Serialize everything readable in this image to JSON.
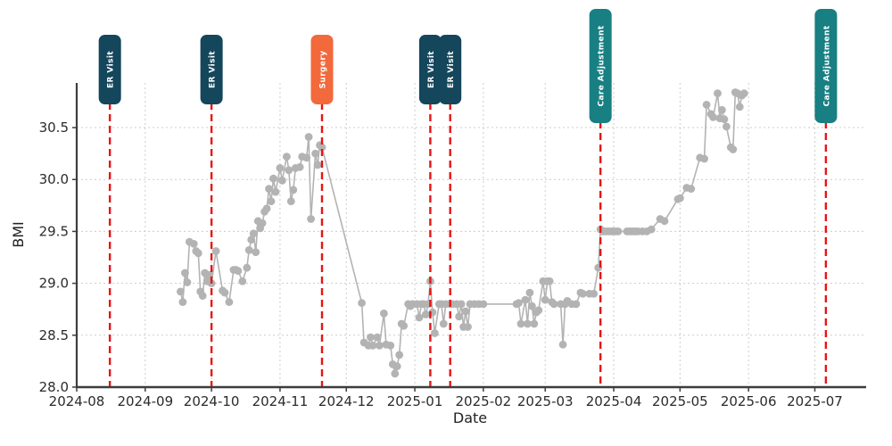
{
  "chart_data": {
    "type": "line",
    "title": "",
    "xlabel": "Date",
    "ylabel": "BMI",
    "grid": true,
    "legend_position": "none",
    "x_domain": [
      "2024-08-01",
      "2025-07-23"
    ],
    "ylim": [
      28.0,
      30.93
    ],
    "x_ticks": [
      {
        "label": "2024-08",
        "date": "2024-08-01"
      },
      {
        "label": "2024-09",
        "date": "2024-09-01"
      },
      {
        "label": "2024-10",
        "date": "2024-10-01"
      },
      {
        "label": "2024-11",
        "date": "2024-11-01"
      },
      {
        "label": "2024-12",
        "date": "2024-12-01"
      },
      {
        "label": "2025-01",
        "date": "2025-01-01"
      },
      {
        "label": "2025-02",
        "date": "2025-02-01"
      },
      {
        "label": "2025-03",
        "date": "2025-03-01"
      },
      {
        "label": "2025-04",
        "date": "2025-04-01"
      },
      {
        "label": "2025-05",
        "date": "2025-05-01"
      },
      {
        "label": "2025-06",
        "date": "2025-06-01"
      },
      {
        "label": "2025-07",
        "date": "2025-07-01"
      }
    ],
    "y_ticks": [
      28.0,
      28.5,
      29.0,
      29.5,
      30.0,
      30.5
    ],
    "events": [
      {
        "date": "2024-08-16",
        "label": "ER Visit",
        "color": "#14465c"
      },
      {
        "date": "2024-10-01",
        "label": "ER Visit",
        "color": "#14465c"
      },
      {
        "date": "2024-11-20",
        "label": "Surgery",
        "color": "#f2693c"
      },
      {
        "date": "2025-01-08",
        "label": "ER Visit",
        "color": "#14465c"
      },
      {
        "date": "2025-01-17",
        "label": "ER Visit",
        "color": "#14465c"
      },
      {
        "date": "2025-03-26",
        "label": "Care Adjustment",
        "color": "#187f83"
      },
      {
        "date": "2025-07-06",
        "label": "Care Adjustment",
        "color": "#187f83"
      }
    ],
    "event_line_color": "#e81414",
    "series": [
      {
        "name": "BMI",
        "color": "#b3b3b3",
        "marker": "circle",
        "points": [
          [
            "2024-09-17",
            28.92
          ],
          [
            "2024-09-18",
            28.82
          ],
          [
            "2024-09-19",
            29.1
          ],
          [
            "2024-09-20",
            29.01
          ],
          [
            "2024-09-21",
            29.4
          ],
          [
            "2024-09-23",
            29.38
          ],
          [
            "2024-09-24",
            29.31
          ],
          [
            "2024-09-25",
            29.29
          ],
          [
            "2024-09-26",
            28.92
          ],
          [
            "2024-09-27",
            28.88
          ],
          [
            "2024-09-28",
            29.1
          ],
          [
            "2024-09-29",
            29.02
          ],
          [
            "2024-09-30",
            29.08
          ],
          [
            "2024-10-01",
            29.0
          ],
          [
            "2024-10-03",
            29.31
          ],
          [
            "2024-10-06",
            28.93
          ],
          [
            "2024-10-07",
            28.91
          ],
          [
            "2024-10-09",
            28.82
          ],
          [
            "2024-10-11",
            29.13
          ],
          [
            "2024-10-12",
            29.13
          ],
          [
            "2024-10-13",
            29.12
          ],
          [
            "2024-10-15",
            29.02
          ],
          [
            "2024-10-17",
            29.15
          ],
          [
            "2024-10-18",
            29.32
          ],
          [
            "2024-10-19",
            29.42
          ],
          [
            "2024-10-20",
            29.48
          ],
          [
            "2024-10-21",
            29.3
          ],
          [
            "2024-10-22",
            29.6
          ],
          [
            "2024-10-23",
            29.53
          ],
          [
            "2024-10-24",
            29.58
          ],
          [
            "2024-10-25",
            29.69
          ],
          [
            "2024-10-26",
            29.72
          ],
          [
            "2024-10-27",
            29.91
          ],
          [
            "2024-10-28",
            29.79
          ],
          [
            "2024-10-29",
            30.01
          ],
          [
            "2024-10-30",
            29.88
          ],
          [
            "2024-11-01",
            30.11
          ],
          [
            "2024-11-02",
            29.99
          ],
          [
            "2024-11-04",
            30.22
          ],
          [
            "2024-11-05",
            30.09
          ],
          [
            "2024-11-06",
            29.79
          ],
          [
            "2024-11-07",
            29.9
          ],
          [
            "2024-11-08",
            30.11
          ],
          [
            "2024-11-10",
            30.12
          ],
          [
            "2024-11-11",
            30.22
          ],
          [
            "2024-11-13",
            30.21
          ],
          [
            "2024-11-14",
            30.41
          ],
          [
            "2024-11-15",
            29.62
          ],
          [
            "2024-11-17",
            30.25
          ],
          [
            "2024-11-18",
            30.14
          ],
          [
            "2024-11-19",
            30.33
          ],
          [
            "2024-11-20",
            30.31
          ],
          [
            "2024-12-08",
            28.81
          ],
          [
            "2024-12-09",
            28.43
          ],
          [
            "2024-12-11",
            28.4
          ],
          [
            "2024-12-12",
            28.48
          ],
          [
            "2024-12-13",
            28.4
          ],
          [
            "2024-12-15",
            28.48
          ],
          [
            "2024-12-16",
            28.4
          ],
          [
            "2024-12-18",
            28.71
          ],
          [
            "2024-12-19",
            28.41
          ],
          [
            "2024-12-21",
            28.4
          ],
          [
            "2024-12-22",
            28.22
          ],
          [
            "2024-12-23",
            28.13
          ],
          [
            "2024-12-24",
            28.2
          ],
          [
            "2024-12-25",
            28.31
          ],
          [
            "2024-12-26",
            28.61
          ],
          [
            "2024-12-27",
            28.59
          ],
          [
            "2024-12-29",
            28.8
          ],
          [
            "2024-12-30",
            28.78
          ],
          [
            "2024-12-31",
            28.8
          ],
          [
            "2025-01-02",
            28.8
          ],
          [
            "2025-01-03",
            28.67
          ],
          [
            "2025-01-04",
            28.8
          ],
          [
            "2025-01-05",
            28.8
          ],
          [
            "2025-01-06",
            28.7
          ],
          [
            "2025-01-07",
            28.8
          ],
          [
            "2025-01-08",
            29.02
          ],
          [
            "2025-01-09",
            28.72
          ],
          [
            "2025-01-10",
            28.52
          ],
          [
            "2025-01-12",
            28.8
          ],
          [
            "2025-01-13",
            28.8
          ],
          [
            "2025-01-14",
            28.61
          ],
          [
            "2025-01-15",
            28.8
          ],
          [
            "2025-01-17",
            28.8
          ],
          [
            "2025-01-18",
            28.8
          ],
          [
            "2025-01-20",
            28.8
          ],
          [
            "2025-01-21",
            28.68
          ],
          [
            "2025-01-22",
            28.8
          ],
          [
            "2025-01-23",
            28.58
          ],
          [
            "2025-01-24",
            28.73
          ],
          [
            "2025-01-25",
            28.58
          ],
          [
            "2025-01-26",
            28.8
          ],
          [
            "2025-01-28",
            28.8
          ],
          [
            "2025-01-30",
            28.8
          ],
          [
            "2025-02-01",
            28.8
          ],
          [
            "2025-02-16",
            28.8
          ],
          [
            "2025-02-17",
            28.81
          ],
          [
            "2025-02-18",
            28.61
          ],
          [
            "2025-02-20",
            28.84
          ],
          [
            "2025-02-21",
            28.61
          ],
          [
            "2025-02-22",
            28.91
          ],
          [
            "2025-02-23",
            28.78
          ],
          [
            "2025-02-24",
            28.61
          ],
          [
            "2025-02-25",
            28.72
          ],
          [
            "2025-02-26",
            28.74
          ],
          [
            "2025-02-28",
            29.02
          ],
          [
            "2025-03-01",
            28.84
          ],
          [
            "2025-03-02",
            29.02
          ],
          [
            "2025-03-03",
            29.02
          ],
          [
            "2025-03-04",
            28.82
          ],
          [
            "2025-03-05",
            28.8
          ],
          [
            "2025-03-08",
            28.8
          ],
          [
            "2025-03-09",
            28.41
          ],
          [
            "2025-03-10",
            28.8
          ],
          [
            "2025-03-11",
            28.83
          ],
          [
            "2025-03-13",
            28.8
          ],
          [
            "2025-03-15",
            28.8
          ],
          [
            "2025-03-17",
            28.91
          ],
          [
            "2025-03-18",
            28.9
          ],
          [
            "2025-03-21",
            28.9
          ],
          [
            "2025-03-23",
            28.9
          ],
          [
            "2025-03-25",
            29.15
          ],
          [
            "2025-03-26",
            29.52
          ],
          [
            "2025-03-27",
            29.5
          ],
          [
            "2025-03-28",
            29.5
          ],
          [
            "2025-03-29",
            29.5
          ],
          [
            "2025-03-30",
            29.5
          ],
          [
            "2025-03-31",
            29.5
          ],
          [
            "2025-04-01",
            29.5
          ],
          [
            "2025-04-02",
            29.5
          ],
          [
            "2025-04-03",
            29.5
          ],
          [
            "2025-04-07",
            29.5
          ],
          [
            "2025-04-08",
            29.5
          ],
          [
            "2025-04-09",
            29.5
          ],
          [
            "2025-04-10",
            29.5
          ],
          [
            "2025-04-11",
            29.5
          ],
          [
            "2025-04-12",
            29.5
          ],
          [
            "2025-04-14",
            29.5
          ],
          [
            "2025-04-16",
            29.5
          ],
          [
            "2025-04-18",
            29.52
          ],
          [
            "2025-04-22",
            29.62
          ],
          [
            "2025-04-24",
            29.6
          ],
          [
            "2025-04-30",
            29.81
          ],
          [
            "2025-05-01",
            29.82
          ],
          [
            "2025-05-04",
            29.92
          ],
          [
            "2025-05-06",
            29.91
          ],
          [
            "2025-05-10",
            30.21
          ],
          [
            "2025-05-12",
            30.2
          ],
          [
            "2025-05-13",
            30.72
          ],
          [
            "2025-05-15",
            30.63
          ],
          [
            "2025-05-16",
            30.6
          ],
          [
            "2025-05-18",
            30.83
          ],
          [
            "2025-05-19",
            30.59
          ],
          [
            "2025-05-20",
            30.67
          ],
          [
            "2025-05-21",
            30.58
          ],
          [
            "2025-05-22",
            30.51
          ],
          [
            "2025-05-24",
            30.31
          ],
          [
            "2025-05-25",
            30.29
          ],
          [
            "2025-05-26",
            30.84
          ],
          [
            "2025-05-27",
            30.83
          ],
          [
            "2025-05-28",
            30.7
          ],
          [
            "2025-05-29",
            30.81
          ],
          [
            "2025-05-30",
            30.83
          ]
        ]
      }
    ]
  },
  "colors": {
    "background": "#ffffff",
    "grid": "#cccccc",
    "spine": "#3d3d3d",
    "tick_text": "#2b2b2b",
    "series": "#b3b3b3",
    "event_line": "#e81414",
    "er_visit_box": "#14465c",
    "surgery_box": "#f2693c",
    "care_adjustment_box": "#187f83"
  }
}
